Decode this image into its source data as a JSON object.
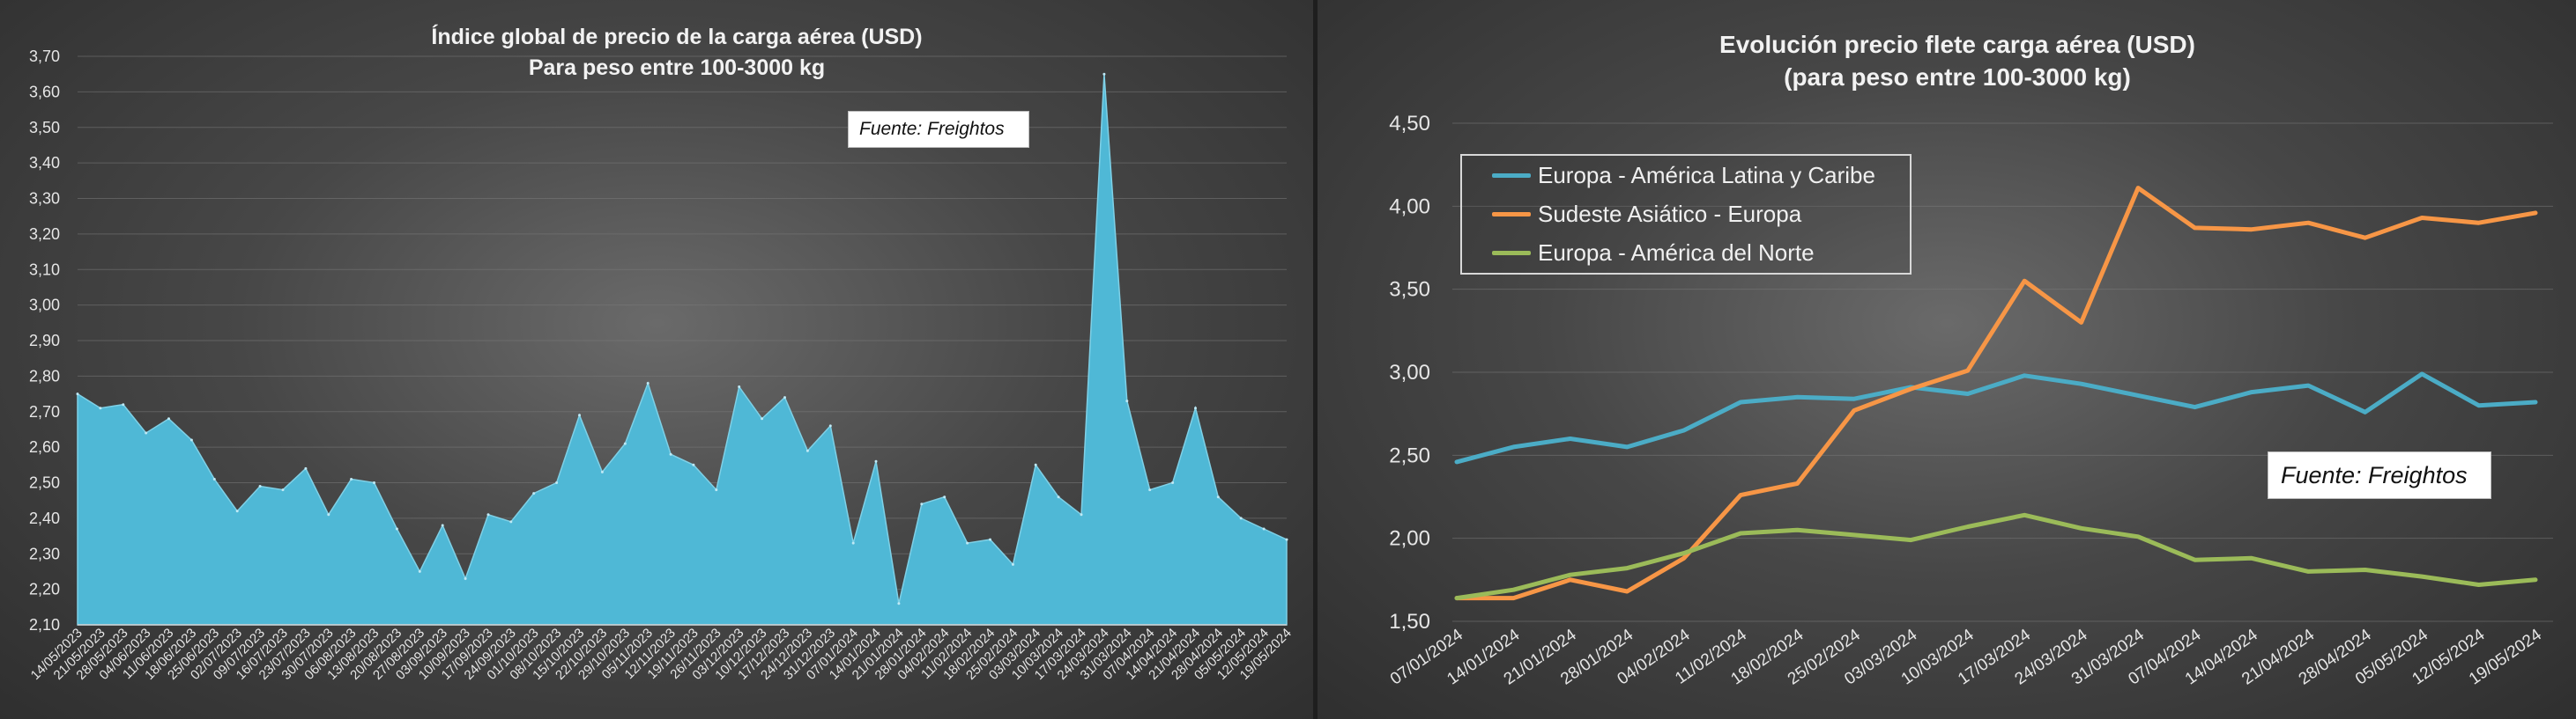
{
  "chart_data": [
    {
      "type": "area",
      "title": "Índice global de precio de la carga aérea (USD)",
      "subtitle": "Para peso entre 100-3000 kg",
      "source_note": "Fuente: Freightos",
      "ylim": [
        2.1,
        3.7
      ],
      "y_ticks": [
        "2,10",
        "2,20",
        "2,30",
        "2,40",
        "2,50",
        "2,60",
        "2,70",
        "2,80",
        "2,90",
        "3,00",
        "3,10",
        "3,20",
        "3,30",
        "3,40",
        "3,50",
        "3,60",
        "3,70"
      ],
      "y_tick_values": [
        2.1,
        2.2,
        2.3,
        2.4,
        2.5,
        2.6,
        2.7,
        2.8,
        2.9,
        3.0,
        3.1,
        3.2,
        3.3,
        3.4,
        3.5,
        3.6,
        3.7
      ],
      "x_tick_labels": [
        "14/05/2023",
        "21/05/2023",
        "28/05/2023",
        "04/06/2023",
        "11/06/2023",
        "18/06/2023",
        "25/06/2023",
        "02/07/2023",
        "09/07/2023",
        "16/07/2023",
        "23/07/2023",
        "30/07/2023",
        "06/08/2023",
        "13/08/2023",
        "20/08/2023",
        "27/08/2023",
        "03/09/2023",
        "10/09/2023",
        "17/09/2023",
        "24/09/2023",
        "01/10/2023",
        "08/10/2023",
        "15/10/2023",
        "22/10/2023",
        "29/10/2023",
        "05/11/2023",
        "12/11/2023",
        "19/11/2023",
        "26/11/2023",
        "03/12/2023",
        "10/12/2023",
        "17/12/2023",
        "24/12/2023",
        "31/12/2023",
        "07/01/2024",
        "14/01/2024",
        "21/01/2024",
        "28/01/2024",
        "04/02/2024",
        "11/02/2024",
        "18/02/2024",
        "25/02/2024",
        "03/03/2024",
        "10/03/2024",
        "17/03/2024",
        "24/03/2024",
        "31/03/2024",
        "07/04/2024",
        "14/04/2024",
        "21/04/2024",
        "28/04/2024",
        "05/05/2024",
        "12/05/2024",
        "19/05/2024"
      ],
      "series": [
        {
          "color": "#4fb8d6",
          "values": [
            2.75,
            2.71,
            2.72,
            2.64,
            2.68,
            2.62,
            2.51,
            2.42,
            2.49,
            2.48,
            2.54,
            2.41,
            2.51,
            2.5,
            2.37,
            2.25,
            2.38,
            2.23,
            2.41,
            2.39,
            2.47,
            2.5,
            2.69,
            2.53,
            2.61,
            2.78,
            2.58,
            2.55,
            2.48,
            2.77,
            2.68,
            2.74,
            2.59,
            2.66,
            2.33,
            2.56,
            2.16,
            2.44,
            2.46,
            2.33,
            2.34,
            2.27,
            2.55,
            2.46,
            2.41,
            3.65,
            2.73,
            2.48,
            2.5,
            2.71,
            2.46,
            2.4,
            2.37,
            2.34
          ]
        }
      ]
    },
    {
      "type": "line",
      "title": "Evolución precio flete carga aérea (USD)",
      "subtitle": "(para peso entre 100-3000 kg)",
      "source_note": "Fuente: Freightos",
      "ylim": [
        1.5,
        4.5
      ],
      "y_ticks": [
        "1,50",
        "2,00",
        "2,50",
        "3,00",
        "3,50",
        "4,00",
        "4,50"
      ],
      "y_tick_values": [
        1.5,
        2.0,
        2.5,
        3.0,
        3.5,
        4.0,
        4.5
      ],
      "x_tick_labels": [
        "07/01/2024",
        "14/01/2024",
        "21/01/2024",
        "28/01/2024",
        "04/02/2024",
        "11/02/2024",
        "18/02/2024",
        "25/02/2024",
        "03/03/2024",
        "10/03/2024",
        "17/03/2024",
        "24/03/2024",
        "31/03/2024",
        "07/04/2024",
        "14/04/2024",
        "21/04/2024",
        "28/04/2024",
        "05/05/2024",
        "12/05/2024",
        "19/05/2024"
      ],
      "legend_placement": "top-left",
      "series": [
        {
          "name": "Europa - América Latina y Caribe",
          "color": "#4bacc6",
          "values": [
            2.46,
            2.55,
            2.6,
            2.55,
            2.65,
            2.82,
            2.85,
            2.84,
            2.91,
            2.87,
            2.98,
            2.93,
            2.86,
            2.79,
            2.88,
            2.92,
            2.76,
            2.99,
            2.8,
            2.82
          ]
        },
        {
          "name": "Sudeste Asiático - Europa",
          "color": "#f79646",
          "values": [
            1.64,
            1.64,
            1.75,
            1.68,
            1.88,
            2.26,
            2.33,
            2.77,
            2.9,
            3.01,
            3.55,
            3.3,
            4.11,
            3.87,
            3.86,
            3.9,
            3.81,
            3.93,
            3.9,
            3.96
          ]
        },
        {
          "name": "Europa - América del Norte",
          "color": "#9bbb59",
          "values": [
            1.64,
            1.69,
            1.78,
            1.82,
            1.91,
            2.03,
            2.05,
            2.02,
            1.99,
            2.07,
            2.14,
            2.06,
            2.01,
            1.87,
            1.88,
            1.8,
            1.81,
            1.77,
            1.72,
            1.75
          ]
        }
      ]
    }
  ]
}
